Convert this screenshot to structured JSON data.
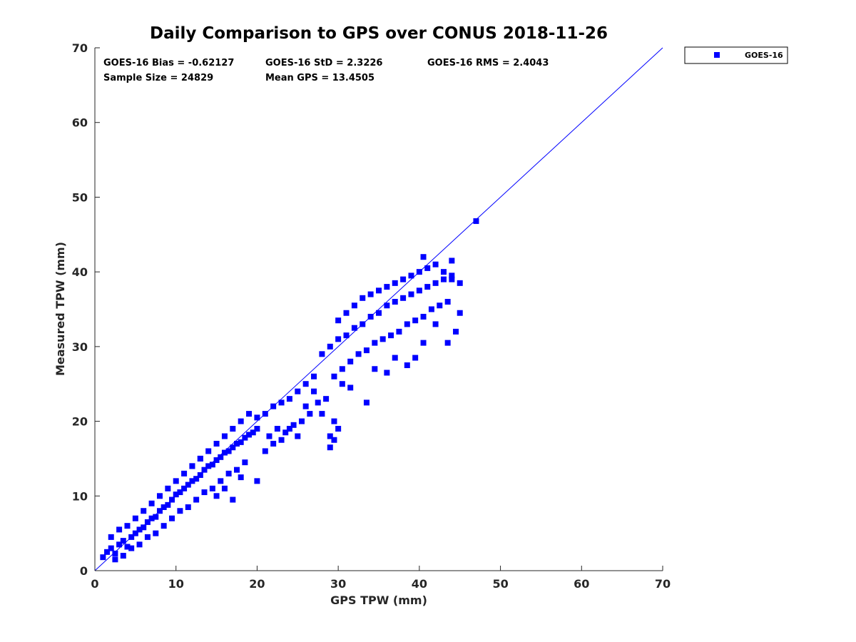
{
  "chart_data": {
    "type": "scatter",
    "title": "Daily Comparison to GPS over CONUS 2018-11-26",
    "xlabel": "GPS TPW (mm)",
    "ylabel": "Measured TPW (mm)",
    "xlim": [
      0,
      70
    ],
    "ylim": [
      0,
      70
    ],
    "xticks": [
      "0",
      "10",
      "20",
      "30",
      "40",
      "50",
      "60",
      "70"
    ],
    "yticks": [
      "0",
      "10",
      "20",
      "30",
      "40",
      "50",
      "60",
      "70"
    ],
    "grid": false,
    "legend_position": "outside-top-right",
    "reference_line": {
      "from": [
        0,
        0
      ],
      "to": [
        70,
        70
      ],
      "color": "#0000ff"
    },
    "stats": [
      "GOES-16 Bias = -0.62127",
      "GOES-16 StD = 2.3226",
      "GOES-16 RMS = 2.4043",
      "Sample Size = 24829",
      "Mean GPS = 13.4505"
    ],
    "series": [
      {
        "name": "GOES-16",
        "color": "#0000ff",
        "marker": "square",
        "x": [
          1.0,
          1.5,
          2.0,
          2.5,
          3.0,
          3.5,
          4.0,
          4.5,
          5.0,
          5.5,
          6.0,
          6.5,
          7.0,
          7.5,
          8.0,
          8.5,
          9.0,
          9.5,
          10.0,
          10.5,
          11.0,
          11.5,
          12.0,
          12.5,
          13.0,
          13.5,
          14.0,
          14.5,
          15.0,
          15.5,
          16.0,
          16.5,
          17.0,
          17.5,
          18.0,
          18.5,
          19.0,
          19.5,
          20.0,
          2.0,
          3.0,
          4.0,
          5.0,
          6.0,
          7.0,
          8.0,
          9.0,
          10.0,
          11.0,
          12.0,
          13.0,
          14.0,
          15.0,
          16.0,
          17.0,
          18.0,
          19.0,
          2.5,
          3.5,
          4.5,
          5.5,
          6.5,
          7.5,
          8.5,
          9.5,
          10.5,
          11.5,
          12.5,
          13.5,
          14.5,
          15.5,
          16.5,
          17.5,
          18.5,
          20.0,
          21.0,
          22.0,
          23.0,
          24.0,
          25.0,
          26.0,
          27.0,
          21.5,
          22.5,
          23.5,
          24.5,
          25.5,
          26.5,
          27.5,
          28.5,
          28.0,
          29.0,
          30.0,
          31.0,
          32.0,
          33.0,
          34.0,
          35.0,
          36.0,
          37.0,
          38.0,
          39.0,
          40.0,
          41.0,
          42.0,
          43.0,
          44.0,
          29.5,
          30.5,
          31.5,
          32.5,
          33.5,
          34.5,
          35.5,
          36.5,
          37.5,
          38.5,
          39.5,
          40.5,
          41.5,
          42.5,
          43.5,
          30.0,
          31.0,
          32.0,
          33.0,
          34.0,
          35.0,
          36.0,
          37.0,
          38.0,
          39.0,
          40.0,
          41.0,
          42.0,
          43.0,
          44.0,
          45.0,
          29.0,
          29.5,
          30.5,
          31.5,
          33.5,
          34.5,
          36.0,
          37.0,
          38.5,
          39.5,
          40.5,
          42.0,
          43.5,
          44.5,
          45.0,
          40.5,
          44.0,
          47.0,
          12.0,
          13.0,
          15.0,
          16.0,
          17.0,
          18.0,
          20.0,
          21.0,
          22.0,
          23.0,
          24.0,
          25.0,
          26.0,
          27.0,
          28.0,
          29.0,
          29.5,
          30.0
        ],
        "y": [
          1.8,
          2.5,
          3.0,
          2.3,
          3.5,
          4.0,
          3.2,
          4.5,
          5.0,
          5.5,
          5.8,
          6.5,
          7.0,
          7.2,
          8.0,
          8.5,
          8.8,
          9.5,
          10.2,
          10.5,
          11.0,
          11.5,
          12.0,
          12.3,
          12.8,
          13.5,
          14.0,
          14.2,
          14.8,
          15.2,
          15.8,
          16.0,
          16.5,
          17.0,
          17.2,
          17.8,
          18.2,
          18.5,
          19.0,
          4.5,
          5.5,
          6.0,
          7.0,
          8.0,
          9.0,
          10.0,
          11.0,
          12.0,
          13.0,
          14.0,
          15.0,
          16.0,
          17.0,
          18.0,
          19.0,
          20.0,
          21.0,
          1.5,
          2.0,
          3.0,
          3.5,
          4.5,
          5.0,
          6.0,
          7.0,
          8.0,
          8.5,
          9.5,
          10.5,
          11.0,
          12.0,
          13.0,
          13.5,
          14.5,
          20.5,
          21.0,
          22.0,
          22.5,
          23.0,
          24.0,
          25.0,
          26.0,
          18.0,
          19.0,
          18.5,
          19.5,
          20.0,
          21.0,
          22.5,
          23.0,
          29.0,
          30.0,
          31.0,
          31.5,
          32.5,
          33.0,
          34.0,
          34.5,
          35.5,
          36.0,
          36.5,
          37.0,
          37.5,
          38.0,
          38.5,
          39.0,
          39.5,
          26.0,
          27.0,
          28.0,
          29.0,
          29.5,
          30.5,
          31.0,
          31.5,
          32.0,
          33.0,
          33.5,
          34.0,
          35.0,
          35.5,
          36.0,
          33.5,
          34.5,
          35.5,
          36.5,
          37.0,
          37.5,
          38.0,
          38.5,
          39.0,
          39.5,
          40.0,
          40.5,
          41.0,
          40.0,
          39.0,
          38.5,
          18.0,
          20.0,
          25.0,
          24.5,
          22.5,
          27.0,
          26.5,
          28.5,
          27.5,
          28.5,
          30.5,
          33.0,
          30.5,
          32.0,
          34.5,
          42.0,
          41.5,
          46.8,
          14.0,
          15.0,
          10.0,
          11.0,
          9.5,
          12.5,
          12.0,
          16.0,
          17.0,
          17.5,
          19.0,
          18.0,
          22.0,
          24.0,
          21.0,
          16.5,
          17.5,
          19.0
        ]
      }
    ]
  }
}
